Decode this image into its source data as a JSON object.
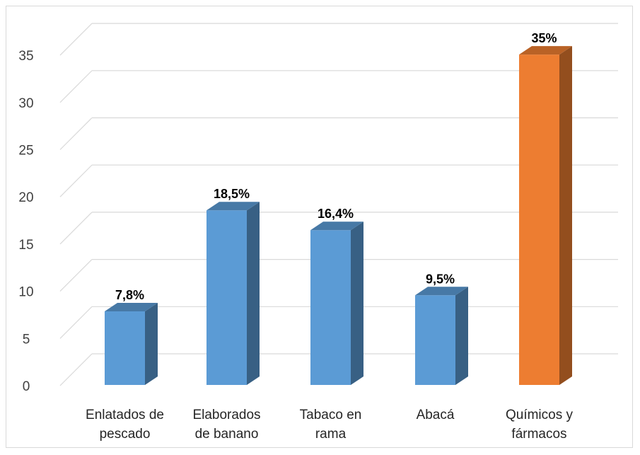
{
  "chart_data": {
    "type": "bar",
    "style": "3d-column",
    "categories": [
      [
        "Enlatados de",
        "pescado"
      ],
      [
        "Elaborados",
        "de banano"
      ],
      [
        "Tabaco en",
        "rama"
      ],
      [
        "Abacá"
      ],
      [
        "Químicos y",
        "fármacos"
      ]
    ],
    "values": [
      7.8,
      18.5,
      16.4,
      9.5,
      35
    ],
    "data_labels": [
      "7,8%",
      "18,5%",
      "16,4%",
      "9,5%",
      "35%"
    ],
    "bar_colors": [
      "#5b9bd5",
      "#5b9bd5",
      "#5b9bd5",
      "#5b9bd5",
      "#ed7d31"
    ],
    "yticks": [
      0,
      5,
      10,
      15,
      20,
      25,
      30,
      35
    ],
    "ylim": [
      0,
      35
    ],
    "grid": true,
    "legend": "none",
    "title": "",
    "xlabel": "",
    "ylabel": ""
  }
}
